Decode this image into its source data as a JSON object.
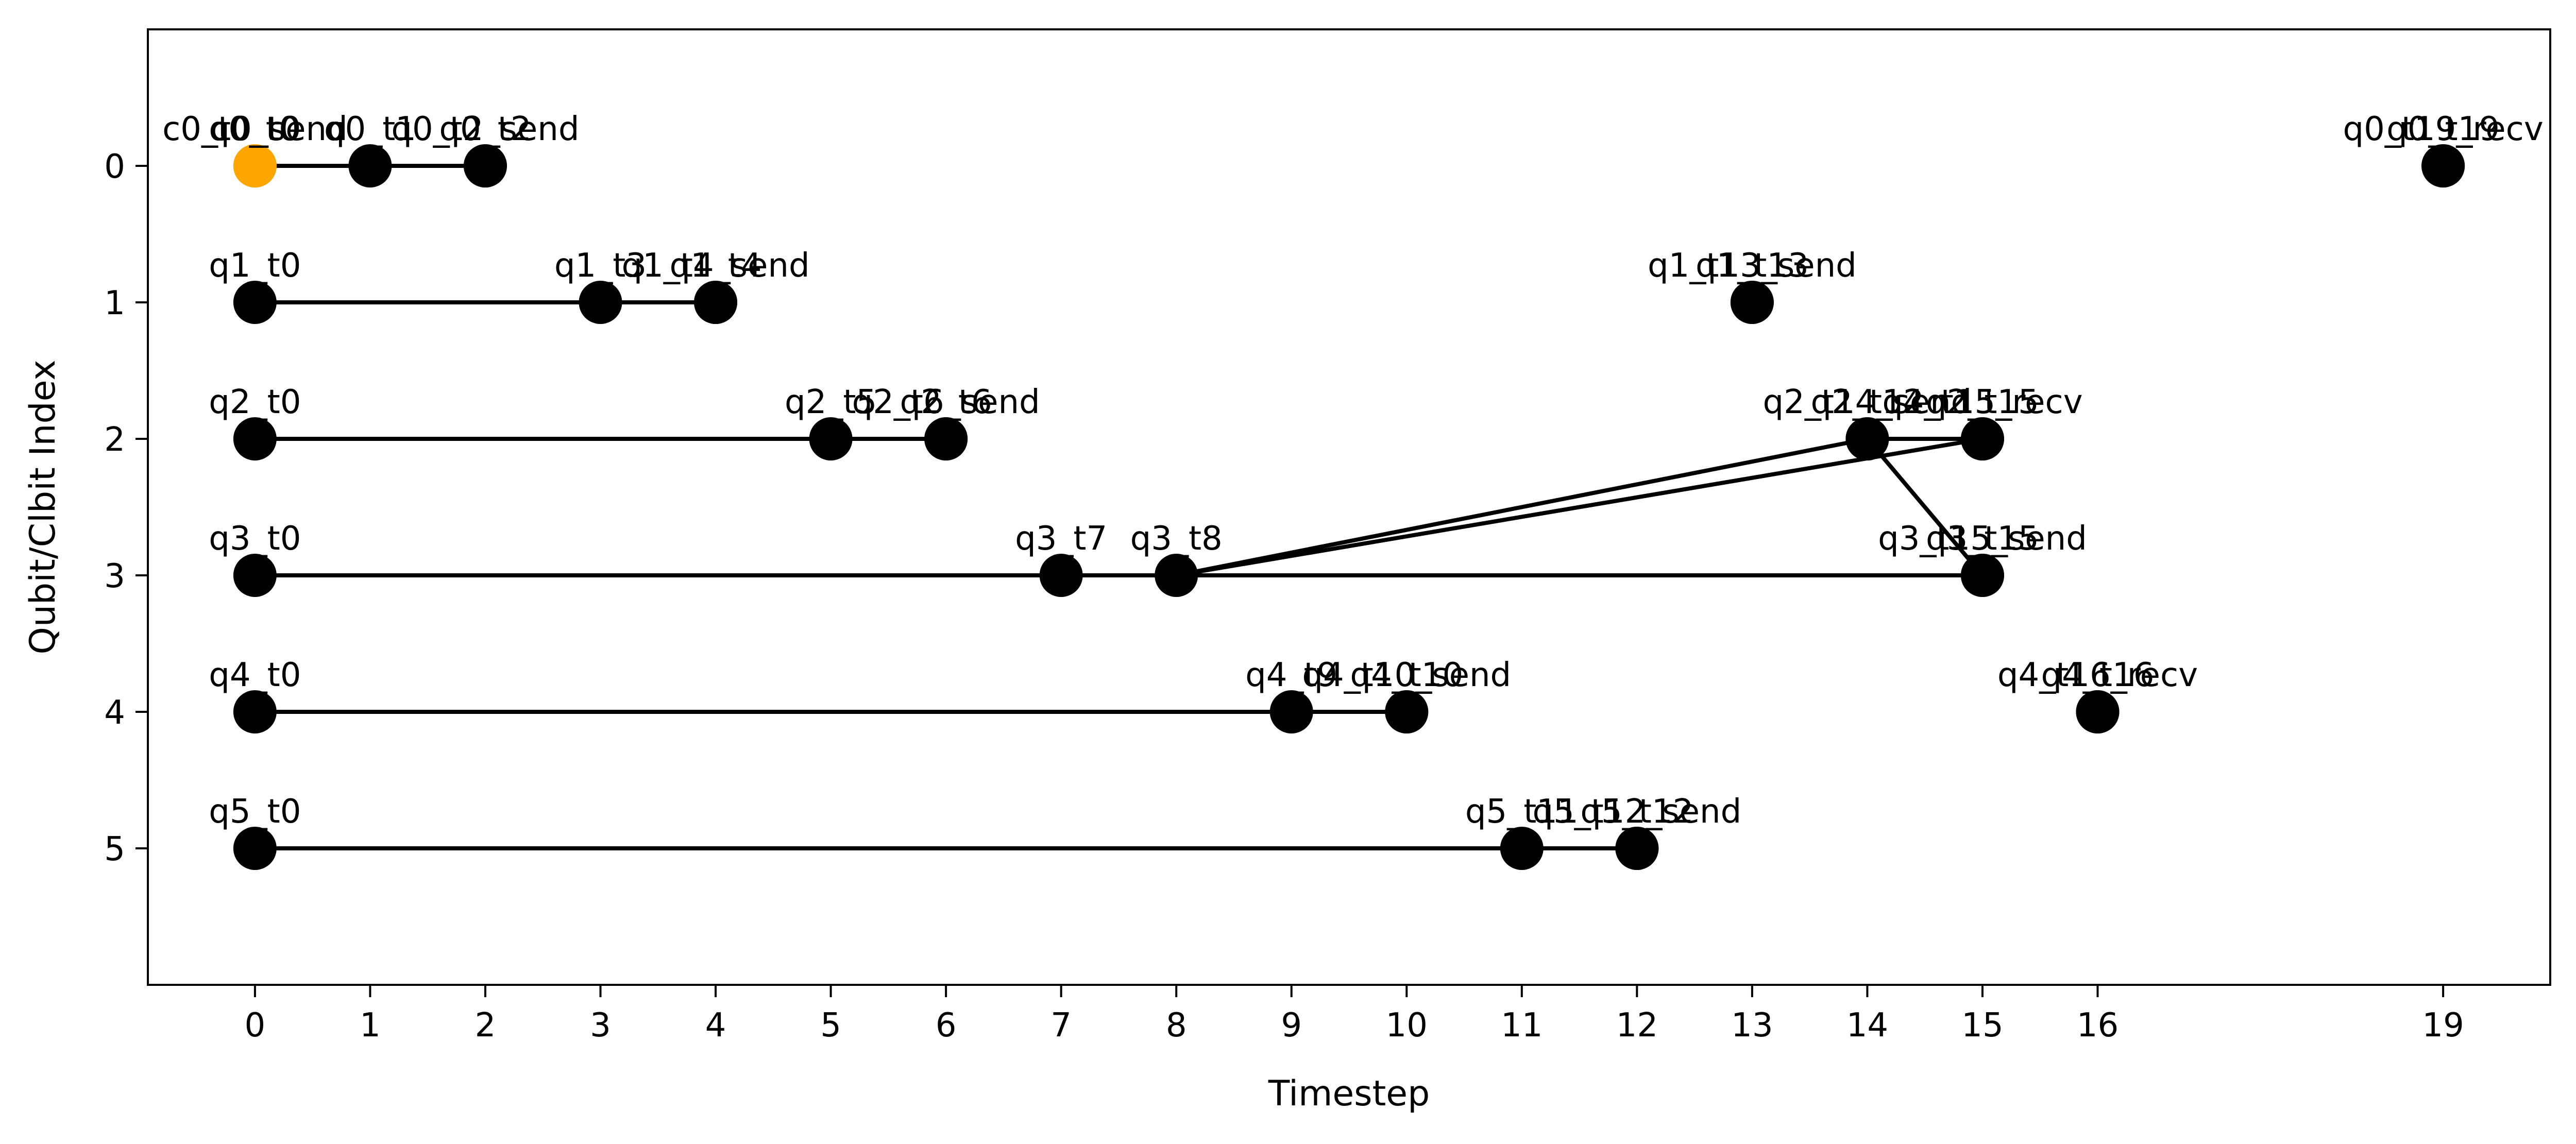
{
  "chart_data": {
    "type": "scatter",
    "title": "",
    "xlabel": "Timestep",
    "ylabel": "Qubit/Clbit Index",
    "xlim": [
      -0.93,
      19.93
    ],
    "ylim": [
      -1.0,
      6.0
    ],
    "y_inverted": true,
    "grid": false,
    "legend": "none",
    "x_ticks": [
      0,
      1,
      2,
      3,
      4,
      5,
      6,
      7,
      8,
      9,
      10,
      11,
      12,
      13,
      14,
      15,
      16,
      19
    ],
    "y_ticks": [
      0,
      1,
      2,
      3,
      4,
      5
    ],
    "colors": {
      "node": "#000000",
      "classical_node": "#FFA500",
      "edge": "#000000"
    },
    "nodes": [
      {
        "x": 0,
        "y": 0,
        "label": "c0_t0",
        "color": "#FFA500"
      },
      {
        "x": 0,
        "y": 0,
        "label": "q0_t0",
        "color": "#FFA500"
      },
      {
        "x": 0,
        "y": 0,
        "label": "c0_t0_send",
        "color": "#FFA500"
      },
      {
        "x": 1,
        "y": 0,
        "label": "q0_t1",
        "color": "#000000"
      },
      {
        "x": 2,
        "y": 0,
        "label": "q0_t2",
        "color": "#000000"
      },
      {
        "x": 2,
        "y": 0,
        "label": "q0_t2_send",
        "color": "#000000"
      },
      {
        "x": 19,
        "y": 0,
        "label": "q0_t19",
        "color": "#000000"
      },
      {
        "x": 19,
        "y": 0,
        "label": "q0_t19_recv",
        "color": "#000000"
      },
      {
        "x": 0,
        "y": 1,
        "label": "q1_t0",
        "color": "#000000"
      },
      {
        "x": 3,
        "y": 1,
        "label": "q1_t3",
        "color": "#000000"
      },
      {
        "x": 4,
        "y": 1,
        "label": "q1_t4",
        "color": "#000000"
      },
      {
        "x": 4,
        "y": 1,
        "label": "q1_t4_send",
        "color": "#000000"
      },
      {
        "x": 13,
        "y": 1,
        "label": "q1_t13",
        "color": "#000000"
      },
      {
        "x": 13,
        "y": 1,
        "label": "q1_t13_send",
        "color": "#000000"
      },
      {
        "x": 0,
        "y": 2,
        "label": "q2_t0",
        "color": "#000000"
      },
      {
        "x": 5,
        "y": 2,
        "label": "q2_t5",
        "color": "#000000"
      },
      {
        "x": 6,
        "y": 2,
        "label": "q2_t6",
        "color": "#000000"
      },
      {
        "x": 6,
        "y": 2,
        "label": "q2_t6_send",
        "color": "#000000"
      },
      {
        "x": 14,
        "y": 2,
        "label": "q2_t14",
        "color": "#000000"
      },
      {
        "x": 14,
        "y": 2,
        "label": "q2_t14_send",
        "color": "#000000"
      },
      {
        "x": 15,
        "y": 2,
        "label": "q2_t15",
        "color": "#000000"
      },
      {
        "x": 15,
        "y": 2,
        "label": "q2_t15_recv",
        "color": "#000000"
      },
      {
        "x": 0,
        "y": 3,
        "label": "q3_t0",
        "color": "#000000"
      },
      {
        "x": 7,
        "y": 3,
        "label": "q3_t7",
        "color": "#000000"
      },
      {
        "x": 8,
        "y": 3,
        "label": "q3_t8",
        "color": "#000000"
      },
      {
        "x": 15,
        "y": 3,
        "label": "q3_t15",
        "color": "#000000"
      },
      {
        "x": 15,
        "y": 3,
        "label": "q3_t15_send",
        "color": "#000000"
      },
      {
        "x": 0,
        "y": 4,
        "label": "q4_t0",
        "color": "#000000"
      },
      {
        "x": 9,
        "y": 4,
        "label": "q4_t9",
        "color": "#000000"
      },
      {
        "x": 10,
        "y": 4,
        "label": "q4_t10",
        "color": "#000000"
      },
      {
        "x": 10,
        "y": 4,
        "label": "q4_t10_send",
        "color": "#000000"
      },
      {
        "x": 16,
        "y": 4,
        "label": "q4_t16",
        "color": "#000000"
      },
      {
        "x": 16,
        "y": 4,
        "label": "q4_t16_recv",
        "color": "#000000"
      },
      {
        "x": 0,
        "y": 5,
        "label": "q5_t0",
        "color": "#000000"
      },
      {
        "x": 11,
        "y": 5,
        "label": "q5_t11",
        "color": "#000000"
      },
      {
        "x": 12,
        "y": 5,
        "label": "q5_t12",
        "color": "#000000"
      },
      {
        "x": 12,
        "y": 5,
        "label": "q5_t12_send",
        "color": "#000000"
      }
    ],
    "edges": [
      {
        "x1": 0,
        "y1": 0,
        "x2": 1,
        "y2": 0
      },
      {
        "x1": 1,
        "y1": 0,
        "x2": 2,
        "y2": 0
      },
      {
        "x1": 0,
        "y1": 1,
        "x2": 3,
        "y2": 1
      },
      {
        "x1": 3,
        "y1": 1,
        "x2": 4,
        "y2": 1
      },
      {
        "x1": 0,
        "y1": 2,
        "x2": 5,
        "y2": 2
      },
      {
        "x1": 5,
        "y1": 2,
        "x2": 6,
        "y2": 2
      },
      {
        "x1": 14,
        "y1": 2,
        "x2": 15,
        "y2": 2
      },
      {
        "x1": 0,
        "y1": 3,
        "x2": 7,
        "y2": 3
      },
      {
        "x1": 7,
        "y1": 3,
        "x2": 8,
        "y2": 3
      },
      {
        "x1": 8,
        "y1": 3,
        "x2": 15,
        "y2": 3
      },
      {
        "x1": 8,
        "y1": 3,
        "x2": 14,
        "y2": 2
      },
      {
        "x1": 8,
        "y1": 3,
        "x2": 15,
        "y2": 2
      },
      {
        "x1": 14,
        "y1": 2,
        "x2": 15,
        "y2": 3
      },
      {
        "x1": 0,
        "y1": 4,
        "x2": 9,
        "y2": 4
      },
      {
        "x1": 9,
        "y1": 4,
        "x2": 10,
        "y2": 4
      },
      {
        "x1": 0,
        "y1": 5,
        "x2": 11,
        "y2": 5
      },
      {
        "x1": 11,
        "y1": 5,
        "x2": 12,
        "y2": 5
      }
    ]
  }
}
